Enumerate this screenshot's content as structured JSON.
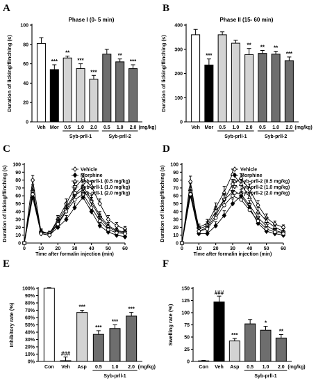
{
  "chart_data": [
    {
      "panel": "A",
      "type": "bar",
      "title": "Phase I (0- 5 min)",
      "ylabel": "Duration of licking/flinching (s)",
      "ylim": [
        0,
        100
      ],
      "yticks": [
        "0",
        "20",
        "40",
        "60",
        "80",
        "100"
      ],
      "categories": [
        "Veh",
        "Mor",
        "0.5",
        "1.0",
        "2.0",
        "0.5",
        "1.0",
        "2.0"
      ],
      "unit_label": "(mg/kg)",
      "groups": [
        {
          "label": "Syb-prll-1",
          "from": 2,
          "to": 4
        },
        {
          "label": "Syb-prll-2",
          "from": 5,
          "to": 7
        }
      ],
      "values": [
        81,
        54,
        66,
        55,
        44,
        70,
        62,
        55
      ],
      "errors": [
        6,
        5,
        2,
        5,
        4,
        5,
        3,
        4
      ],
      "stars": [
        "",
        "***",
        "**",
        "***",
        "***",
        "",
        "**",
        "***"
      ],
      "colors": [
        "#ffffff",
        "#000000",
        "#d3d3d3",
        "#d3d3d3",
        "#d3d3d3",
        "#6e6e6e",
        "#6e6e6e",
        "#6e6e6e"
      ]
    },
    {
      "panel": "B",
      "type": "bar",
      "title": "Phase II  (15- 60 min)",
      "ylabel": "Duration of licking/flinching (s)",
      "ylim": [
        0,
        400
      ],
      "yticks": [
        "0",
        "100",
        "200",
        "300",
        "400"
      ],
      "categories": [
        "Veh",
        "Mor",
        "0.5",
        "1.0",
        "2.0",
        "0.5",
        "1.0",
        "2.0"
      ],
      "unit_label": "(mg/kg)",
      "groups": [
        {
          "label": "Syb-prll-1",
          "from": 2,
          "to": 4
        },
        {
          "label": "Syb-prll-2",
          "from": 5,
          "to": 7
        }
      ],
      "values": [
        360,
        235,
        360,
        325,
        278,
        283,
        280,
        253
      ],
      "errors": [
        22,
        25,
        12,
        12,
        25,
        12,
        12,
        15
      ],
      "stars": [
        "",
        "***",
        "",
        "",
        "**",
        "**",
        "**",
        "***"
      ],
      "colors": [
        "#ffffff",
        "#000000",
        "#d3d3d3",
        "#d3d3d3",
        "#d3d3d3",
        "#6e6e6e",
        "#6e6e6e",
        "#6e6e6e"
      ]
    },
    {
      "panel": "C",
      "type": "line",
      "ylabel": "Duration of licking/flinching (s)",
      "xlabel": "Time after formalin injection (min)",
      "xlim": [
        0,
        60
      ],
      "ylim": [
        0,
        100
      ],
      "xticks": [
        "0",
        "10",
        "20",
        "30",
        "40",
        "50",
        "60"
      ],
      "yticks": [
        "0",
        "10",
        "20",
        "30",
        "40",
        "50",
        "60",
        "70",
        "80",
        "90",
        "100"
      ],
      "x": [
        0,
        5,
        10,
        15,
        20,
        25,
        30,
        35,
        40,
        45,
        50,
        55,
        60
      ],
      "series": [
        {
          "name": "Vehicle",
          "marker": "diamond-open",
          "values": [
            0,
            80,
            14,
            12,
            30,
            50,
            70,
            82,
            72,
            50,
            30,
            22,
            18
          ],
          "errors": [
            0,
            6,
            3,
            3,
            5,
            6,
            6,
            6,
            7,
            6,
            5,
            4,
            3
          ]
        },
        {
          "name": "Morphine",
          "marker": "diamond-filled",
          "values": [
            0,
            58,
            12,
            10,
            20,
            30,
            45,
            58,
            40,
            22,
            14,
            10,
            8
          ],
          "errors": [
            0,
            6,
            3,
            2,
            4,
            5,
            6,
            6,
            6,
            4,
            3,
            2,
            2
          ]
        },
        {
          "name": "Syb-prll-1 (0.5 mg/kg)",
          "marker": "triangle-open",
          "values": [
            0,
            68,
            15,
            12,
            28,
            45,
            62,
            72,
            55,
            35,
            22,
            16,
            14
          ],
          "errors": [
            0,
            6,
            3,
            3,
            5,
            6,
            6,
            6,
            6,
            5,
            4,
            3,
            3
          ]
        },
        {
          "name": "Syb-prll-1 (1.0 mg/kg)",
          "marker": "triangle-down-open",
          "values": [
            0,
            65,
            13,
            12,
            25,
            42,
            60,
            68,
            52,
            32,
            20,
            15,
            13
          ],
          "errors": [
            0,
            6,
            3,
            3,
            5,
            6,
            6,
            6,
            6,
            5,
            4,
            3,
            3
          ]
        },
        {
          "name": "Syb-prll-1 (2.0 mg/kg)",
          "marker": "circle-open",
          "values": [
            0,
            62,
            12,
            10,
            24,
            40,
            55,
            62,
            45,
            28,
            17,
            13,
            12
          ],
          "errors": [
            0,
            6,
            3,
            2,
            5,
            6,
            6,
            6,
            6,
            5,
            3,
            3,
            3
          ]
        }
      ]
    },
    {
      "panel": "D",
      "type": "line",
      "ylabel": "Duration of licking/flinching (s)",
      "xlabel": "Time after formalin injection (min)",
      "xlim": [
        0,
        60
      ],
      "ylim": [
        0,
        100
      ],
      "xticks": [
        "0",
        "10",
        "20",
        "30",
        "40",
        "50",
        "60"
      ],
      "yticks": [
        "0",
        "10",
        "20",
        "30",
        "40",
        "50",
        "60",
        "70",
        "80",
        "90",
        "100"
      ],
      "x": [
        0,
        5,
        10,
        15,
        20,
        25,
        30,
        35,
        40,
        45,
        50,
        55,
        60
      ],
      "series": [
        {
          "name": "Vehicle",
          "marker": "diamond-open",
          "values": [
            0,
            78,
            15,
            20,
            35,
            55,
            75,
            82,
            68,
            48,
            32,
            24,
            20
          ],
          "errors": [
            0,
            7,
            4,
            5,
            6,
            7,
            6,
            6,
            7,
            6,
            5,
            4,
            3
          ]
        },
        {
          "name": "Morphine",
          "marker": "diamond-filled",
          "values": [
            0,
            60,
            12,
            12,
            22,
            35,
            50,
            60,
            45,
            25,
            15,
            12,
            10
          ],
          "errors": [
            0,
            6,
            3,
            3,
            5,
            6,
            6,
            6,
            6,
            4,
            3,
            3,
            2
          ]
        },
        {
          "name": "Syb-prll-2 (0.5 mg/kg)",
          "marker": "triangle-open",
          "values": [
            0,
            70,
            20,
            25,
            45,
            65,
            88,
            75,
            58,
            40,
            28,
            20,
            15
          ],
          "errors": [
            0,
            6,
            4,
            5,
            6,
            7,
            6,
            6,
            6,
            5,
            4,
            3,
            3
          ]
        },
        {
          "name": "Syb-prll-2 (1.0 mg/kg)",
          "marker": "triangle-down-open",
          "values": [
            0,
            65,
            18,
            22,
            40,
            55,
            65,
            62,
            48,
            32,
            22,
            16,
            13
          ],
          "errors": [
            0,
            6,
            4,
            5,
            6,
            6,
            6,
            6,
            6,
            5,
            4,
            3,
            3
          ]
        },
        {
          "name": "Syb-prll-2 (2.0 mg/kg)",
          "marker": "circle-open",
          "values": [
            0,
            62,
            15,
            18,
            32,
            48,
            60,
            55,
            42,
            28,
            18,
            14,
            12
          ],
          "errors": [
            0,
            6,
            3,
            4,
            5,
            6,
            6,
            6,
            6,
            4,
            3,
            3,
            3
          ]
        }
      ]
    },
    {
      "panel": "E",
      "type": "bar",
      "ylabel": "Inhibitory rate (%)",
      "ylim": [
        0,
        100
      ],
      "yticks": [
        "0%",
        "10%",
        "20%",
        "30%",
        "40%",
        "50%",
        "60%",
        "70%",
        "80%",
        "90%",
        "100%"
      ],
      "categories": [
        "Con",
        "Veh",
        "Asp",
        "0.5",
        "1.0",
        "2.0"
      ],
      "unit_label": "(mg/kg)",
      "groups": [
        {
          "label": "Syb-prll-1",
          "from": 3,
          "to": 5
        }
      ],
      "values": [
        100,
        1,
        67,
        37,
        45,
        62
      ],
      "errors": [
        1,
        5,
        3,
        5,
        5,
        5
      ],
      "stars": [
        "",
        "###",
        "***",
        "***",
        "***",
        "***"
      ],
      "colors": [
        "#ffffff",
        "#ffffff",
        "#d3d3d3",
        "#6e6e6e",
        "#6e6e6e",
        "#6e6e6e"
      ]
    },
    {
      "panel": "F",
      "type": "bar",
      "ylabel": "Swelling rate (%)",
      "ylim": [
        0,
        150
      ],
      "yticks": [
        "0",
        "25",
        "50",
        "75",
        "100",
        "125",
        "150"
      ],
      "categories": [
        "Con",
        "Veh",
        "Asp",
        "0.5",
        "1.0",
        "2.0"
      ],
      "unit_label": "(mg/kg)",
      "groups": [
        {
          "label": "Syb-prll-1",
          "from": 3,
          "to": 5
        }
      ],
      "values": [
        1,
        122,
        42,
        77,
        64,
        48
      ],
      "errors": [
        1,
        12,
        5,
        9,
        8,
        7
      ],
      "stars": [
        "",
        "###",
        "***",
        "",
        "*",
        "**"
      ],
      "colors": [
        "#ffffff",
        "#000000",
        "#d3d3d3",
        "#6e6e6e",
        "#6e6e6e",
        "#6e6e6e"
      ]
    }
  ]
}
